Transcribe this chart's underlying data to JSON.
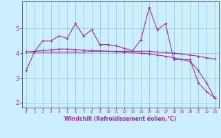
{
  "xlabel": "Windchill (Refroidissement éolien,°C)",
  "x": [
    0,
    1,
    2,
    3,
    4,
    5,
    6,
    7,
    8,
    9,
    10,
    11,
    12,
    13,
    14,
    15,
    16,
    17,
    18,
    19,
    20,
    21,
    22,
    23
  ],
  "y_line1": [
    3.3,
    4.05,
    4.5,
    4.5,
    4.7,
    4.6,
    5.2,
    4.7,
    4.95,
    4.35,
    4.35,
    4.3,
    4.2,
    4.1,
    4.55,
    5.85,
    4.95,
    5.2,
    3.75,
    3.75,
    3.75,
    2.8,
    2.45,
    2.2
  ],
  "y_line2": [
    4.05,
    4.05,
    4.05,
    4.05,
    4.05,
    4.05,
    4.05,
    4.05,
    4.08,
    4.08,
    4.08,
    4.08,
    4.08,
    4.08,
    4.08,
    4.08,
    4.05,
    4.03,
    4.0,
    3.97,
    3.93,
    3.88,
    3.82,
    3.77
  ],
  "y_line3": [
    4.05,
    4.08,
    4.11,
    4.14,
    4.17,
    4.17,
    4.15,
    4.13,
    4.11,
    4.1,
    4.08,
    4.06,
    4.04,
    4.02,
    4.0,
    3.98,
    3.93,
    3.88,
    3.82,
    3.75,
    3.68,
    3.3,
    2.8,
    2.2
  ],
  "color": "#993399",
  "bg_color": "#cceeff",
  "grid_color": "#99cccc",
  "ylim": [
    1.8,
    6.1
  ],
  "yticks": [
    2,
    3,
    4,
    5
  ],
  "xlim": [
    -0.5,
    23.5
  ]
}
